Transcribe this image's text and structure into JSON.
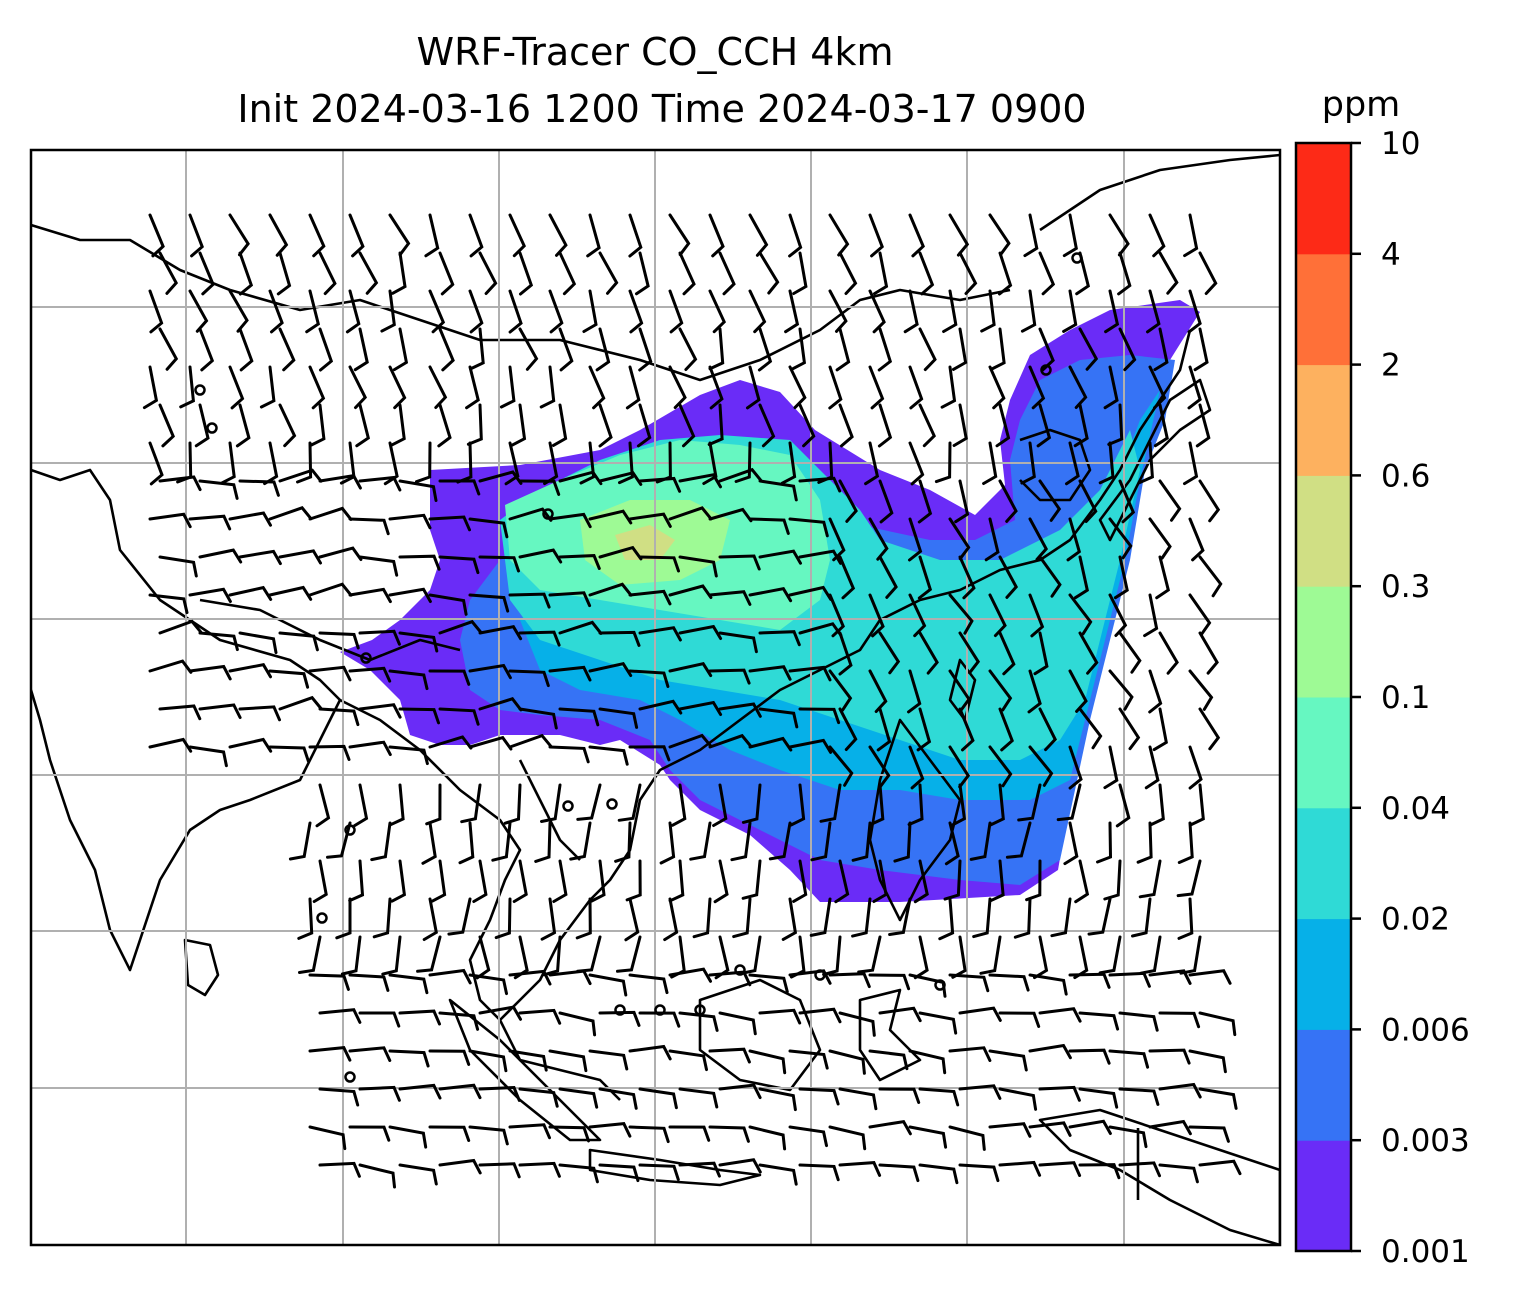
{
  "title": {
    "line1": "WRF-Tracer CO_CCH 4km",
    "line2": "Init 2024-03-16 1200 Time 2024-03-17 0900"
  },
  "colorbar": {
    "unit": "ppm",
    "levels": [
      "0.001",
      "0.003",
      "0.006",
      "0.02",
      "0.04",
      "0.1",
      "0.3",
      "0.6",
      "2",
      "4",
      "10"
    ],
    "colors": [
      "#6a2cf7",
      "#3673f5",
      "#06b0e8",
      "#2fdad6",
      "#66f7c1",
      "#9efa95",
      "#d0df84",
      "#fdb15f",
      "#ff7038",
      "#fd2a17"
    ]
  },
  "map": {
    "gridlines": true,
    "gridline_color": "#b0b0b0",
    "coastline_color": "#000000",
    "field": "CO_CCH tracer concentration with wind barbs"
  }
}
